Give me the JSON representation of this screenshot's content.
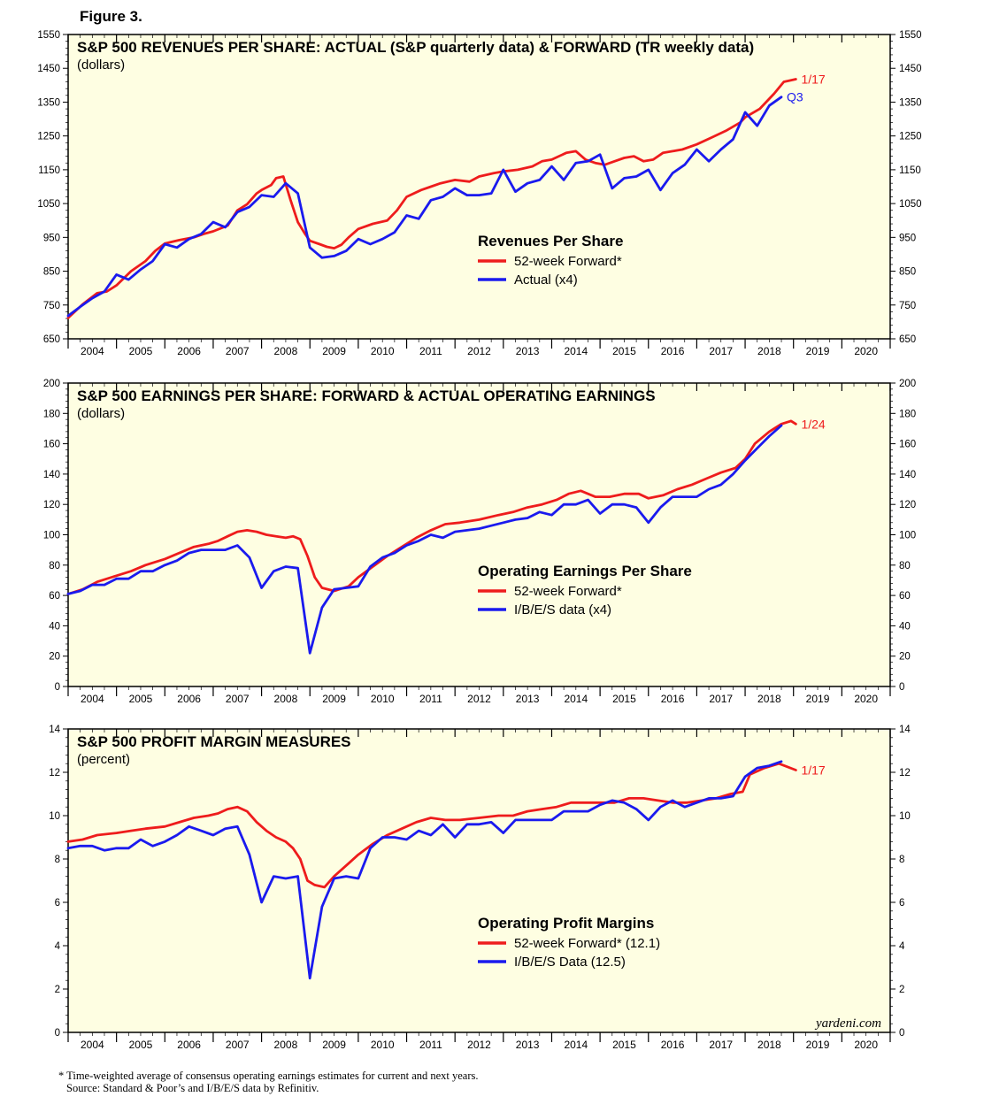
{
  "figure_label": "Figure 3.",
  "footnotes": [
    "* Time-weighted average of consensus operating earnings estimates for current and next years.",
    "Source: Standard & Poor’s and I/B/E/S data by Refinitiv."
  ],
  "watermark": "yardeni.com",
  "colors": {
    "forward": "#ee1c1c",
    "actual": "#1a1aee",
    "panel_bg": "#fefee2"
  },
  "years": [
    "2004",
    "2005",
    "2006",
    "2007",
    "2008",
    "2009",
    "2010",
    "2011",
    "2012",
    "2013",
    "2014",
    "2015",
    "2016",
    "2017",
    "2018",
    "2019",
    "2020"
  ],
  "chart_data": [
    {
      "type": "line",
      "title": "S&P 500 REVENUES PER SHARE: ACTUAL (S&P quarterly data) & FORWARD (TR weekly data)",
      "subtitle": "(dollars)",
      "ylim": [
        650,
        1550
      ],
      "yticks": [
        650,
        750,
        850,
        950,
        1050,
        1150,
        1250,
        1350,
        1450,
        1550
      ],
      "xlim": [
        2004.0,
        2021.0
      ],
      "legend_title": "Revenues Per Share",
      "series": [
        {
          "name": "52-week Forward*",
          "key": "forward",
          "end_label": "1/17",
          "x": [
            2004.0,
            2004.3,
            2004.6,
            2004.8,
            2005.0,
            2005.3,
            2005.6,
            2005.8,
            2006.0,
            2006.3,
            2006.6,
            2006.8,
            2007.0,
            2007.3,
            2007.5,
            2007.7,
            2007.9,
            2008.0,
            2008.2,
            2008.3,
            2008.45,
            2008.6,
            2008.75,
            2008.9,
            2009.0,
            2009.2,
            2009.35,
            2009.5,
            2009.65,
            2009.8,
            2010.0,
            2010.3,
            2010.6,
            2010.8,
            2011.0,
            2011.3,
            2011.5,
            2011.7,
            2012.0,
            2012.3,
            2012.5,
            2012.8,
            2013.0,
            2013.3,
            2013.6,
            2013.8,
            2014.0,
            2014.3,
            2014.5,
            2014.7,
            2014.9,
            2015.1,
            2015.3,
            2015.5,
            2015.7,
            2015.9,
            2016.1,
            2016.3,
            2016.5,
            2016.7,
            2017.0,
            2017.3,
            2017.6,
            2017.9,
            2018.0,
            2018.3,
            2018.6,
            2018.8,
            2019.05
          ],
          "values": [
            712,
            752,
            785,
            790,
            808,
            850,
            880,
            910,
            932,
            942,
            950,
            960,
            968,
            985,
            1030,
            1048,
            1080,
            1090,
            1105,
            1125,
            1130,
            1060,
            995,
            960,
            940,
            930,
            922,
            918,
            928,
            950,
            975,
            990,
            1000,
            1030,
            1070,
            1090,
            1100,
            1110,
            1120,
            1115,
            1130,
            1140,
            1145,
            1150,
            1160,
            1175,
            1180,
            1200,
            1205,
            1180,
            1170,
            1165,
            1175,
            1185,
            1190,
            1175,
            1180,
            1200,
            1205,
            1210,
            1225,
            1245,
            1265,
            1290,
            1305,
            1330,
            1375,
            1410,
            1418
          ]
        },
        {
          "name": "Actual (x4)",
          "key": "actual",
          "end_label": "Q3",
          "x": [
            2004.0,
            2004.25,
            2004.5,
            2004.75,
            2005.0,
            2005.25,
            2005.5,
            2005.75,
            2006.0,
            2006.25,
            2006.5,
            2006.75,
            2007.0,
            2007.25,
            2007.5,
            2007.75,
            2008.0,
            2008.25,
            2008.5,
            2008.75,
            2009.0,
            2009.25,
            2009.5,
            2009.75,
            2010.0,
            2010.25,
            2010.5,
            2010.75,
            2011.0,
            2011.25,
            2011.5,
            2011.75,
            2012.0,
            2012.25,
            2012.5,
            2012.75,
            2013.0,
            2013.25,
            2013.5,
            2013.75,
            2014.0,
            2014.25,
            2014.5,
            2014.75,
            2015.0,
            2015.25,
            2015.5,
            2015.75,
            2016.0,
            2016.25,
            2016.5,
            2016.75,
            2017.0,
            2017.25,
            2017.5,
            2017.75,
            2018.0,
            2018.25,
            2018.5,
            2018.75
          ],
          "values": [
            718,
            745,
            770,
            790,
            840,
            825,
            855,
            880,
            930,
            920,
            945,
            960,
            995,
            980,
            1025,
            1040,
            1075,
            1070,
            1110,
            1080,
            920,
            890,
            895,
            910,
            945,
            930,
            945,
            965,
            1015,
            1005,
            1060,
            1070,
            1095,
            1075,
            1075,
            1080,
            1150,
            1085,
            1110,
            1120,
            1160,
            1120,
            1170,
            1175,
            1195,
            1095,
            1125,
            1130,
            1150,
            1090,
            1140,
            1165,
            1210,
            1175,
            1210,
            1240,
            1320,
            1280,
            1340,
            1365
          ]
        }
      ]
    },
    {
      "type": "line",
      "title": "S&P 500 EARNINGS PER SHARE: FORWARD & ACTUAL OPERATING EARNINGS",
      "subtitle": "(dollars)",
      "ylim": [
        0,
        200
      ],
      "yticks": [
        0,
        20,
        40,
        60,
        80,
        100,
        120,
        140,
        160,
        180,
        200
      ],
      "xlim": [
        2004.0,
        2021.0
      ],
      "legend_title": "Operating Earnings Per Share",
      "series": [
        {
          "name": "52-week Forward*",
          "key": "forward",
          "end_label": "1/24",
          "x": [
            2004.0,
            2004.3,
            2004.6,
            2005.0,
            2005.3,
            2005.6,
            2006.0,
            2006.3,
            2006.6,
            2006.9,
            2007.1,
            2007.3,
            2007.5,
            2007.7,
            2007.9,
            2008.1,
            2008.3,
            2008.5,
            2008.65,
            2008.8,
            2008.95,
            2009.1,
            2009.25,
            2009.5,
            2009.8,
            2010.0,
            2010.3,
            2010.6,
            2010.9,
            2011.2,
            2011.5,
            2011.8,
            2012.1,
            2012.5,
            2012.9,
            2013.2,
            2013.5,
            2013.8,
            2014.1,
            2014.35,
            2014.6,
            2014.9,
            2015.2,
            2015.5,
            2015.8,
            2016.0,
            2016.3,
            2016.6,
            2016.9,
            2017.2,
            2017.5,
            2017.8,
            2018.0,
            2018.2,
            2018.5,
            2018.75,
            2018.95,
            2019.05
          ],
          "values": [
            61,
            64,
            69,
            73,
            76,
            80,
            84,
            88,
            92,
            94,
            96,
            99,
            102,
            103,
            102,
            100,
            99,
            98,
            99,
            97,
            86,
            72,
            65,
            63,
            66,
            72,
            79,
            86,
            92,
            98,
            103,
            107,
            108,
            110,
            113,
            115,
            118,
            120,
            123,
            127,
            129,
            125,
            125,
            127,
            127,
            124,
            126,
            130,
            133,
            137,
            141,
            144,
            150,
            160,
            168,
            173,
            175,
            173
          ]
        },
        {
          "name": "I/B/E/S data (x4)",
          "key": "actual",
          "end_label": "",
          "x": [
            2004.0,
            2004.25,
            2004.5,
            2004.75,
            2005.0,
            2005.25,
            2005.5,
            2005.75,
            2006.0,
            2006.25,
            2006.5,
            2006.75,
            2007.0,
            2007.25,
            2007.5,
            2007.75,
            2008.0,
            2008.25,
            2008.5,
            2008.75,
            2009.0,
            2009.25,
            2009.5,
            2009.75,
            2010.0,
            2010.25,
            2010.5,
            2010.75,
            2011.0,
            2011.25,
            2011.5,
            2011.75,
            2012.0,
            2012.25,
            2012.5,
            2012.75,
            2013.0,
            2013.25,
            2013.5,
            2013.75,
            2014.0,
            2014.25,
            2014.5,
            2014.75,
            2015.0,
            2015.25,
            2015.5,
            2015.75,
            2016.0,
            2016.25,
            2016.5,
            2016.75,
            2017.0,
            2017.25,
            2017.5,
            2017.75,
            2018.0,
            2018.25,
            2018.5,
            2018.75
          ],
          "values": [
            61,
            63,
            67,
            67,
            71,
            71,
            76,
            76,
            80,
            83,
            88,
            90,
            90,
            90,
            93,
            85,
            65,
            76,
            79,
            78,
            22,
            52,
            64,
            65,
            66,
            79,
            85,
            88,
            93,
            96,
            100,
            98,
            102,
            103,
            104,
            106,
            108,
            110,
            111,
            115,
            113,
            120,
            120,
            123,
            114,
            120,
            120,
            118,
            108,
            118,
            125,
            125,
            125,
            130,
            133,
            140,
            149,
            157,
            165,
            172
          ]
        }
      ]
    },
    {
      "type": "line",
      "title": "S&P 500 PROFIT MARGIN MEASURES",
      "subtitle": "(percent)",
      "ylim": [
        0,
        14
      ],
      "yticks": [
        0,
        2,
        4,
        6,
        8,
        10,
        12,
        14
      ],
      "xlim": [
        2004.0,
        2021.0
      ],
      "legend_title": "Operating Profit Margins",
      "series": [
        {
          "name": "52-week Forward* (12.1)",
          "key": "forward",
          "end_label": "1/17",
          "x": [
            2004.0,
            2004.3,
            2004.6,
            2005.0,
            2005.3,
            2005.6,
            2006.0,
            2006.3,
            2006.6,
            2006.9,
            2007.1,
            2007.3,
            2007.5,
            2007.7,
            2007.9,
            2008.1,
            2008.3,
            2008.5,
            2008.65,
            2008.8,
            2008.95,
            2009.1,
            2009.3,
            2009.5,
            2009.8,
            2010.0,
            2010.3,
            2010.6,
            2010.9,
            2011.2,
            2011.5,
            2011.8,
            2012.1,
            2012.5,
            2012.9,
            2013.2,
            2013.5,
            2013.8,
            2014.1,
            2014.4,
            2014.7,
            2015.0,
            2015.3,
            2015.6,
            2015.9,
            2016.2,
            2016.5,
            2016.8,
            2017.1,
            2017.4,
            2017.7,
            2017.95,
            2018.1,
            2018.4,
            2018.7,
            2019.05
          ],
          "values": [
            8.8,
            8.9,
            9.1,
            9.2,
            9.3,
            9.4,
            9.5,
            9.7,
            9.9,
            10.0,
            10.1,
            10.3,
            10.4,
            10.2,
            9.7,
            9.3,
            9.0,
            8.8,
            8.5,
            8.0,
            7.0,
            6.8,
            6.7,
            7.2,
            7.8,
            8.2,
            8.7,
            9.1,
            9.4,
            9.7,
            9.9,
            9.8,
            9.8,
            9.9,
            10.0,
            10.0,
            10.2,
            10.3,
            10.4,
            10.6,
            10.6,
            10.6,
            10.6,
            10.8,
            10.8,
            10.7,
            10.6,
            10.6,
            10.7,
            10.8,
            11.0,
            11.1,
            11.9,
            12.2,
            12.4,
            12.1
          ]
        },
        {
          "name": "I/B/E/S Data (12.5)",
          "key": "actual",
          "end_label": "",
          "x": [
            2004.0,
            2004.25,
            2004.5,
            2004.75,
            2005.0,
            2005.25,
            2005.5,
            2005.75,
            2006.0,
            2006.25,
            2006.5,
            2006.75,
            2007.0,
            2007.25,
            2007.5,
            2007.75,
            2008.0,
            2008.25,
            2008.5,
            2008.75,
            2009.0,
            2009.25,
            2009.5,
            2009.75,
            2010.0,
            2010.25,
            2010.5,
            2010.75,
            2011.0,
            2011.25,
            2011.5,
            2011.75,
            2012.0,
            2012.25,
            2012.5,
            2012.75,
            2013.0,
            2013.25,
            2013.5,
            2013.75,
            2014.0,
            2014.25,
            2014.5,
            2014.75,
            2015.0,
            2015.25,
            2015.5,
            2015.75,
            2016.0,
            2016.25,
            2016.5,
            2016.75,
            2017.0,
            2017.25,
            2017.5,
            2017.75,
            2018.0,
            2018.25,
            2018.5,
            2018.75
          ],
          "values": [
            8.5,
            8.6,
            8.6,
            8.4,
            8.5,
            8.5,
            8.9,
            8.6,
            8.8,
            9.1,
            9.5,
            9.3,
            9.1,
            9.4,
            9.5,
            8.2,
            6.0,
            7.2,
            7.1,
            7.2,
            2.5,
            5.8,
            7.1,
            7.2,
            7.1,
            8.5,
            9.0,
            9.0,
            8.9,
            9.3,
            9.1,
            9.6,
            9.0,
            9.6,
            9.6,
            9.7,
            9.2,
            9.8,
            9.8,
            9.8,
            9.8,
            10.2,
            10.2,
            10.2,
            10.5,
            10.7,
            10.6,
            10.3,
            9.8,
            10.4,
            10.7,
            10.4,
            10.6,
            10.8,
            10.8,
            10.9,
            11.8,
            12.2,
            12.3,
            12.5
          ]
        }
      ]
    }
  ]
}
